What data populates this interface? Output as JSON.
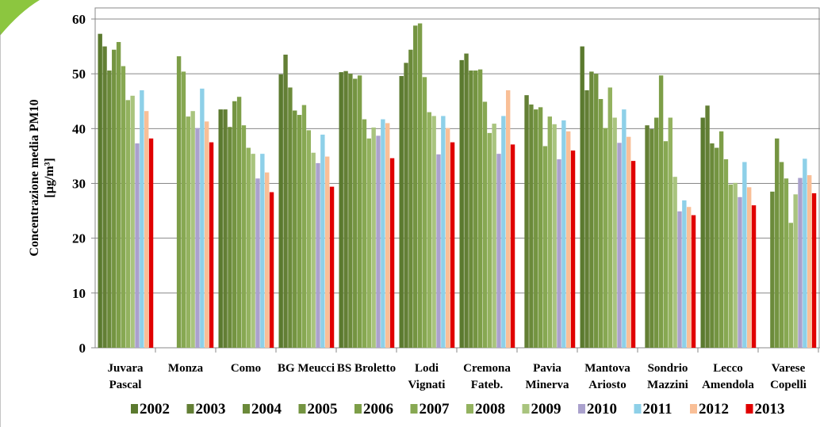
{
  "chart_data": {
    "type": "bar",
    "ylabel": [
      "Concentrazione media PM10",
      "[µg/m³]"
    ],
    "categories": [
      "Juvara\nPascal",
      "Monza",
      "Como",
      "BG Meucci",
      "BS Broletto",
      "Lodi\nVignati",
      "Cremona\nFateb.",
      "Pavia\nMinerva",
      "Mantova\nAriosto",
      "Sondrio\nMazzini",
      "Lecco\nAmendola",
      "Varese\nCopelli"
    ],
    "series": [
      {
        "name": "2002",
        "color": "#5b7a2f",
        "values": [
          57.3,
          null,
          43.5,
          49.9,
          50.3,
          49.6,
          52.5,
          null,
          55,
          null,
          42,
          null
        ]
      },
      {
        "name": "2003",
        "color": "#637f35",
        "values": [
          55,
          null,
          43.5,
          53.5,
          50.5,
          52,
          53.7,
          46.1,
          47,
          40.6,
          44.2,
          null
        ]
      },
      {
        "name": "2004",
        "color": "#6b8a3a",
        "values": [
          50.6,
          null,
          40.3,
          47.5,
          50,
          54.4,
          50.6,
          44.4,
          50.4,
          39.9,
          37.3,
          28.5
        ]
      },
      {
        "name": "2005",
        "color": "#749441",
        "values": [
          54.4,
          null,
          45,
          43.3,
          49.1,
          58.8,
          50.6,
          43.5,
          50,
          42,
          36.5,
          38.2
        ]
      },
      {
        "name": "2006",
        "color": "#7d9e48",
        "values": [
          55.8,
          53.2,
          45.8,
          42.5,
          49.7,
          59.2,
          50.8,
          43.9,
          45.4,
          49.7,
          39.5,
          33.9
        ]
      },
      {
        "name": "2007",
        "color": "#87a852",
        "values": [
          51.4,
          50.4,
          40.6,
          44.3,
          41.7,
          49.4,
          44.9,
          36.8,
          40.1,
          37.7,
          34.4,
          30.9
        ]
      },
      {
        "name": "2008",
        "color": "#93b25f",
        "values": [
          45.2,
          42.2,
          36.5,
          39.7,
          38.2,
          43,
          39.2,
          42.2,
          47.5,
          42,
          29.8,
          22.8
        ]
      },
      {
        "name": "2009",
        "color": "#a9c47e",
        "values": [
          46,
          43.2,
          35.4,
          35.6,
          40.2,
          42.3,
          40.9,
          40.8,
          42,
          31.2,
          30.1,
          28
        ]
      },
      {
        "name": "2010",
        "color": "#aaa1cd",
        "values": [
          37.3,
          40.1,
          30.9,
          33.7,
          38.7,
          35.3,
          35.4,
          34.4,
          37.4,
          24.9,
          27.5,
          31
        ]
      },
      {
        "name": "2011",
        "color": "#8ed0e8",
        "values": [
          47,
          47.3,
          35.4,
          38.9,
          41.7,
          42.3,
          42.3,
          41.5,
          43.5,
          26.9,
          33.9,
          34.5
        ]
      },
      {
        "name": "2012",
        "color": "#f9bf97",
        "values": [
          43.2,
          41.3,
          32,
          34.9,
          41,
          40.1,
          47,
          39.5,
          38.5,
          25.7,
          29.3,
          31.5
        ]
      },
      {
        "name": "2013",
        "color": "#e00000",
        "values": [
          38.2,
          37.5,
          28.4,
          29.4,
          34.6,
          37.5,
          37.1,
          36,
          34.1,
          24.2,
          26,
          28.2
        ]
      }
    ],
    "ylim": [
      0,
      60
    ],
    "yticks": [
      0,
      10,
      20,
      30,
      40,
      50,
      60
    ],
    "grid": true
  }
}
